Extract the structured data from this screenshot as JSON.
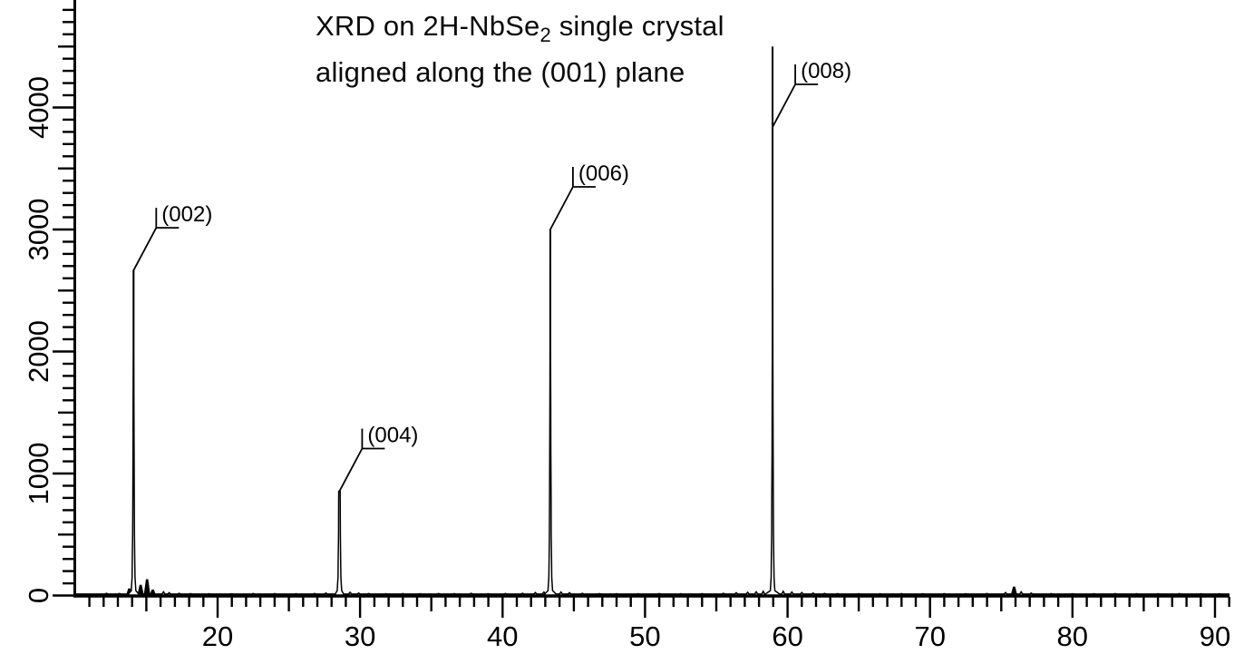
{
  "page": {
    "background": "#ffffff",
    "ink": "#000000"
  },
  "title": {
    "line1_prefix": "XRD on 2H-NbSe",
    "line1_sub": "2",
    "line1_suffix": " single crystal",
    "line2": "aligned along the (001) plane"
  },
  "chart_data": {
    "type": "line",
    "title": "XRD on 2H-NbSe2 single crystal aligned along the (001) plane",
    "xlabel": "",
    "ylabel": "",
    "grid": false,
    "legend": false,
    "x_axis": {
      "min": 10,
      "max": 91,
      "minor_step": 1,
      "medium_step": 5,
      "major_step": 10,
      "tick_labels": [
        "20",
        "30",
        "40",
        "50",
        "60",
        "70",
        "80",
        "90"
      ],
      "tick_label_values": [
        20,
        30,
        40,
        50,
        60,
        70,
        80,
        90
      ]
    },
    "y_axis": {
      "min": 0,
      "max_visible": 4878,
      "minor_step": 100,
      "medium_step": 500,
      "major_step": 1000,
      "tick_labels": [
        "0",
        "1000",
        "2000",
        "3000",
        "4000"
      ],
      "tick_label_values": [
        0,
        1000,
        2000,
        3000,
        4000
      ]
    },
    "peaks": [
      {
        "hkl": "(002)",
        "two_theta": 14.1,
        "intensity": 2665,
        "leader_attach": 2665,
        "base_halfwidth": 7
      },
      {
        "hkl": "(004)",
        "two_theta": 28.55,
        "intensity": 855,
        "leader_attach": 855,
        "base_halfwidth": 5.5
      },
      {
        "hkl": "(006)",
        "two_theta": 43.35,
        "intensity": 3000,
        "leader_attach": 3000,
        "base_halfwidth": 8
      },
      {
        "hkl": "(008)",
        "two_theta": 58.95,
        "intensity": 4495,
        "leader_attach": 3840,
        "base_halfwidth": 10
      }
    ],
    "minor_peaks": [
      {
        "two_theta": 13.8,
        "intensity": 55
      },
      {
        "two_theta": 14.6,
        "intensity": 85
      },
      {
        "two_theta": 15.05,
        "intensity": 130
      },
      {
        "two_theta": 15.45,
        "intensity": 45
      },
      {
        "two_theta": 75.9,
        "intensity": 70
      }
    ],
    "noise": [
      [
        12.2,
        18
      ],
      [
        13.1,
        16
      ],
      [
        16.2,
        30
      ],
      [
        16.6,
        22
      ],
      [
        17.3,
        18
      ],
      [
        18.1,
        15
      ],
      [
        19.4,
        14
      ],
      [
        21.0,
        14
      ],
      [
        22.5,
        16
      ],
      [
        24.0,
        15
      ],
      [
        25.5,
        14
      ],
      [
        26.8,
        16
      ],
      [
        27.6,
        20
      ],
      [
        29.3,
        26
      ],
      [
        29.9,
        20
      ],
      [
        30.6,
        16
      ],
      [
        31.8,
        14
      ],
      [
        33.0,
        15
      ],
      [
        34.2,
        14
      ],
      [
        35.5,
        16
      ],
      [
        36.6,
        15
      ],
      [
        37.8,
        18
      ],
      [
        39.0,
        14
      ],
      [
        40.2,
        16
      ],
      [
        41.4,
        18
      ],
      [
        42.3,
        24
      ],
      [
        42.9,
        28
      ],
      [
        44.1,
        28
      ],
      [
        44.7,
        22
      ],
      [
        45.6,
        18
      ],
      [
        46.8,
        15
      ],
      [
        48.0,
        14
      ],
      [
        49.5,
        14
      ],
      [
        51.0,
        15
      ],
      [
        52.5,
        14
      ],
      [
        54.0,
        15
      ],
      [
        55.5,
        18
      ],
      [
        56.4,
        22
      ],
      [
        57.2,
        26
      ],
      [
        57.8,
        30
      ],
      [
        58.3,
        34
      ],
      [
        59.7,
        34
      ],
      [
        60.3,
        28
      ],
      [
        61.0,
        24
      ],
      [
        61.8,
        20
      ],
      [
        62.6,
        17
      ],
      [
        63.5,
        15
      ],
      [
        65.0,
        14
      ],
      [
        66.5,
        14
      ],
      [
        68.0,
        15
      ],
      [
        69.5,
        14
      ],
      [
        71.0,
        15
      ],
      [
        72.5,
        14
      ],
      [
        74.0,
        16
      ],
      [
        75.3,
        24
      ],
      [
        76.4,
        30
      ],
      [
        77.1,
        20
      ],
      [
        78.5,
        15
      ],
      [
        80.0,
        14
      ],
      [
        81.5,
        14
      ],
      [
        83.0,
        15
      ],
      [
        84.5,
        14
      ],
      [
        86.0,
        14
      ],
      [
        87.5,
        15
      ],
      [
        89.0,
        14
      ],
      [
        90.3,
        14
      ]
    ]
  }
}
